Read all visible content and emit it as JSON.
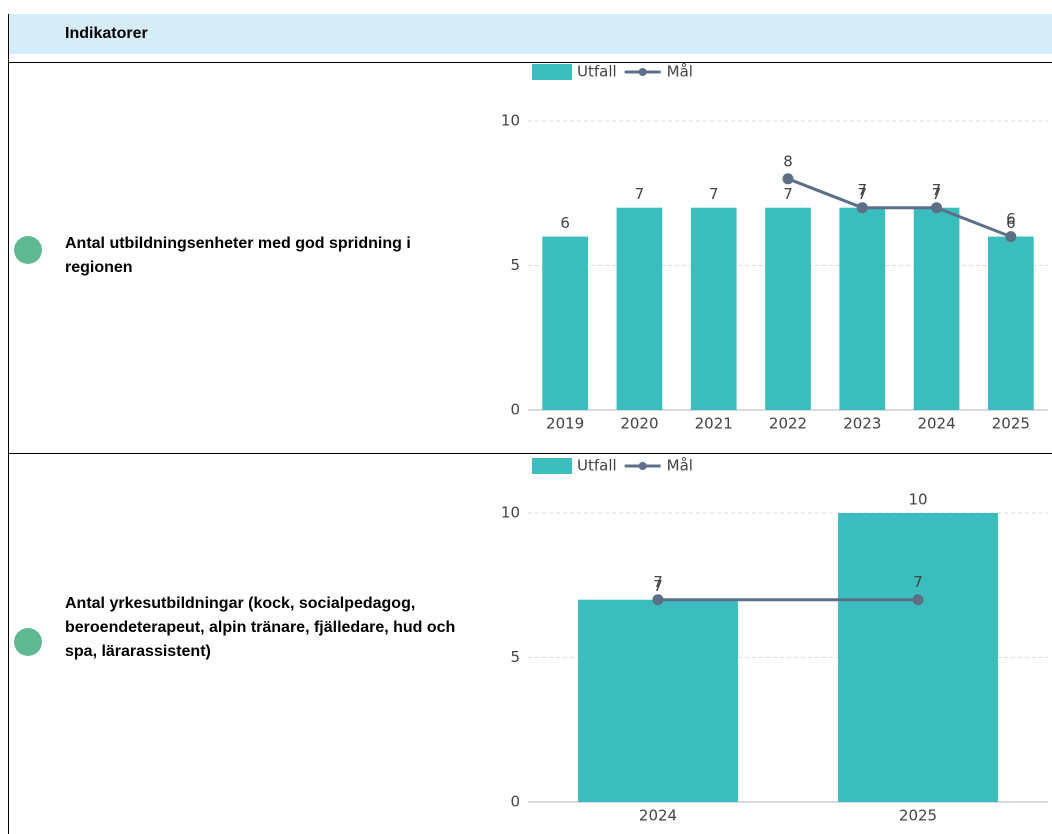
{
  "header": {
    "title": "Indikatorer"
  },
  "rows": [
    {
      "label": "Antal utbildningsenheter med god spridning i regionen"
    },
    {
      "label": "Antal yrkesutbildningar (kock, socialpedagog, beroendeterapeut, alpin tränare, fjälledare, hud och spa, lärarassistent)"
    }
  ],
  "chart_data": [
    {
      "type": "combo",
      "legend": "top",
      "categories": [
        "2019",
        "2020",
        "2021",
        "2022",
        "2023",
        "2024",
        "2025"
      ],
      "series": [
        {
          "name": "Utfall",
          "type": "bar",
          "color": "#3bbdbd",
          "values": [
            6,
            7,
            7,
            7,
            7,
            7,
            6
          ]
        },
        {
          "name": "Mål",
          "type": "line",
          "color": "#5c6f87",
          "values": [
            null,
            null,
            null,
            8,
            7,
            7,
            6
          ]
        }
      ],
      "ylim": [
        0,
        10
      ],
      "yticks": [
        0,
        5,
        10
      ],
      "grid": true
    },
    {
      "type": "combo",
      "legend": "top",
      "categories": [
        "2024",
        "2025"
      ],
      "series": [
        {
          "name": "Utfall",
          "type": "bar",
          "color": "#3bbdbd",
          "values": [
            7,
            10
          ]
        },
        {
          "name": "Mål",
          "type": "line",
          "color": "#5c6f87",
          "values": [
            7,
            7
          ]
        }
      ],
      "ylim": [
        0,
        10
      ],
      "yticks": [
        0,
        5,
        10
      ],
      "grid": true
    }
  ]
}
